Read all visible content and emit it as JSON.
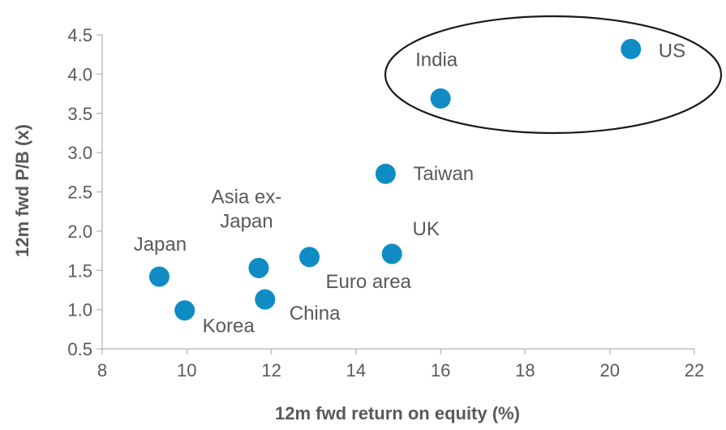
{
  "chart_data": {
    "type": "scatter",
    "title": "",
    "xlabel": "12m fwd return on equity (%)",
    "ylabel": "12m fwd P/B (x)",
    "xlim": [
      8,
      22
    ],
    "ylim": [
      0.5,
      4.5
    ],
    "xticks": [
      "8",
      "10",
      "12",
      "14",
      "16",
      "18",
      "20",
      "22"
    ],
    "yticks": [
      "0.5",
      "1.0",
      "1.5",
      "2.0",
      "2.5",
      "3.0",
      "3.5",
      "4.0",
      "4.5"
    ],
    "grid": false,
    "marker_color": "#0F8CC4",
    "axis_color": "#BFBFBF",
    "text_color": "#595959",
    "points": [
      {
        "name": "US",
        "x": 20.5,
        "y": 4.32
      },
      {
        "name": "India",
        "x": 16.0,
        "y": 3.69
      },
      {
        "name": "Taiwan",
        "x": 14.7,
        "y": 2.73
      },
      {
        "name": "UK",
        "x": 14.85,
        "y": 1.71
      },
      {
        "name": "Euro area",
        "x": 12.9,
        "y": 1.67
      },
      {
        "name": "Asia ex-Japan",
        "x": 11.7,
        "y": 1.53
      },
      {
        "name": "China",
        "x": 11.85,
        "y": 1.13
      },
      {
        "name": "Japan",
        "x": 9.35,
        "y": 1.42
      },
      {
        "name": "Korea",
        "x": 9.95,
        "y": 0.99
      }
    ],
    "highlight": {
      "shape": "ellipse",
      "around": [
        "India",
        "US"
      ]
    }
  }
}
